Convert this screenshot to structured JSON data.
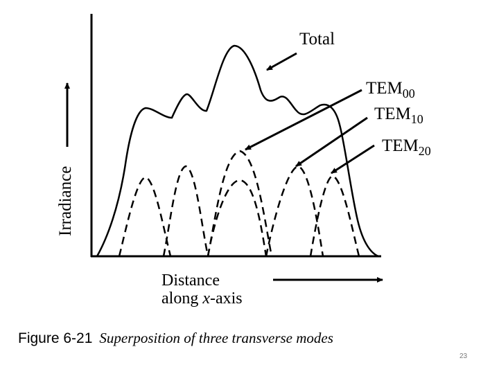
{
  "diagram": {
    "curves": {
      "total_label": "Total",
      "modes": [
        {
          "base": "TEM",
          "sub": "00"
        },
        {
          "base": "TEM",
          "sub": "10"
        },
        {
          "base": "TEM",
          "sub": "20"
        }
      ]
    },
    "axes": {
      "y_label": "Irradiance",
      "x_label_line1": "Distance",
      "x_label_line2_pre": "along ",
      "x_label_line2_var": "x",
      "x_label_line2_post": "-axis"
    }
  },
  "caption": {
    "number": "Figure 6-21",
    "text": "Superposition of three transverse modes"
  },
  "page_number": "23"
}
